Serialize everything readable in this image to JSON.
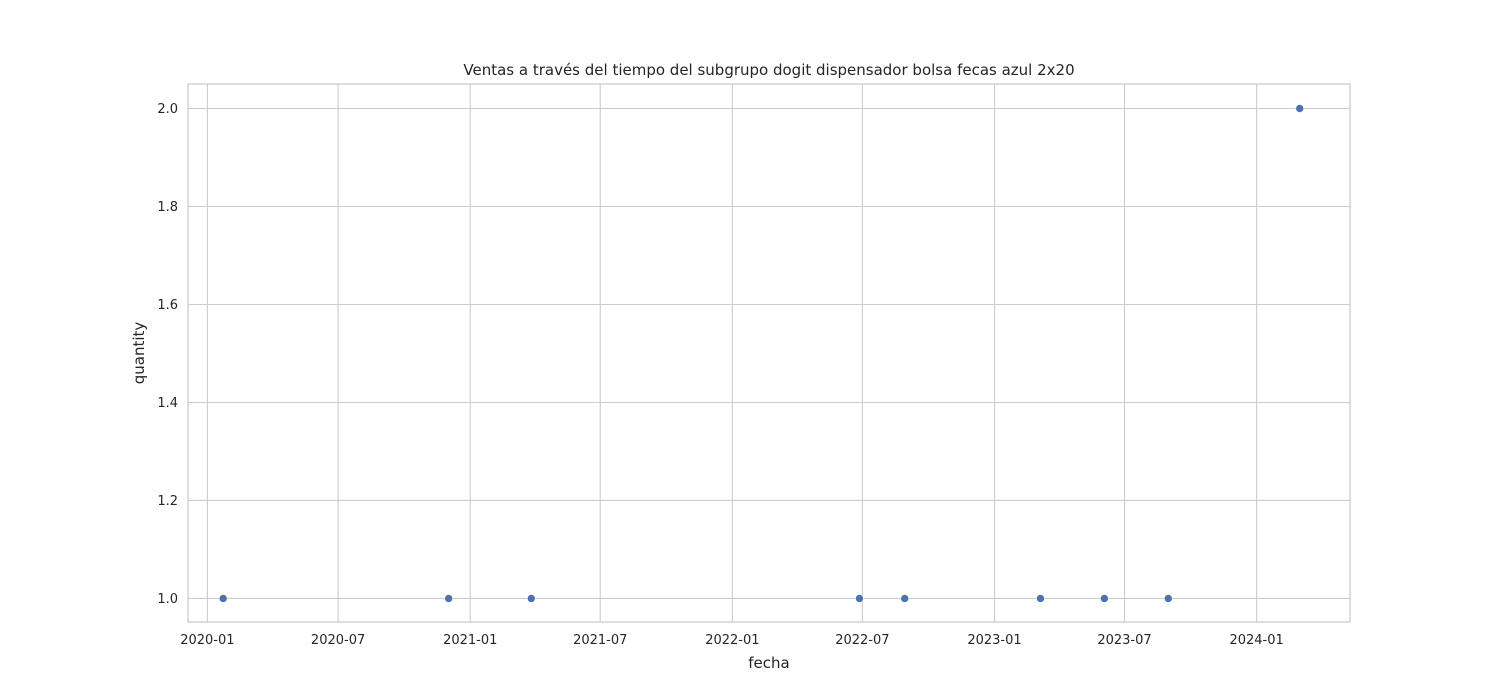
{
  "chart_data": {
    "type": "scatter",
    "title": "Ventas a través del tiempo del subgrupo dogit dispensador bolsa fecas azul 2x20",
    "xlabel": "fecha",
    "ylabel": "quantity",
    "x_ticks": [
      "2020-01",
      "2020-07",
      "2021-01",
      "2021-07",
      "2022-01",
      "2022-07",
      "2023-01",
      "2023-07",
      "2024-01"
    ],
    "y_ticks": [
      "1.0",
      "1.2",
      "1.4",
      "1.6",
      "1.8",
      "2.0"
    ],
    "xlim": [
      "2019-12-05",
      "2024-05-10"
    ],
    "ylim": [
      0.952,
      2.05
    ],
    "grid": true,
    "point_color": "#4c72b0",
    "points": [
      {
        "x": "2020-01-23",
        "y": 1
      },
      {
        "x": "2020-12-02",
        "y": 1
      },
      {
        "x": "2021-03-27",
        "y": 1
      },
      {
        "x": "2022-06-27",
        "y": 1
      },
      {
        "x": "2022-08-29",
        "y": 1
      },
      {
        "x": "2023-03-06",
        "y": 1
      },
      {
        "x": "2023-06-03",
        "y": 1
      },
      {
        "x": "2023-08-31",
        "y": 1
      },
      {
        "x": "2024-03-01",
        "y": 2
      }
    ]
  }
}
